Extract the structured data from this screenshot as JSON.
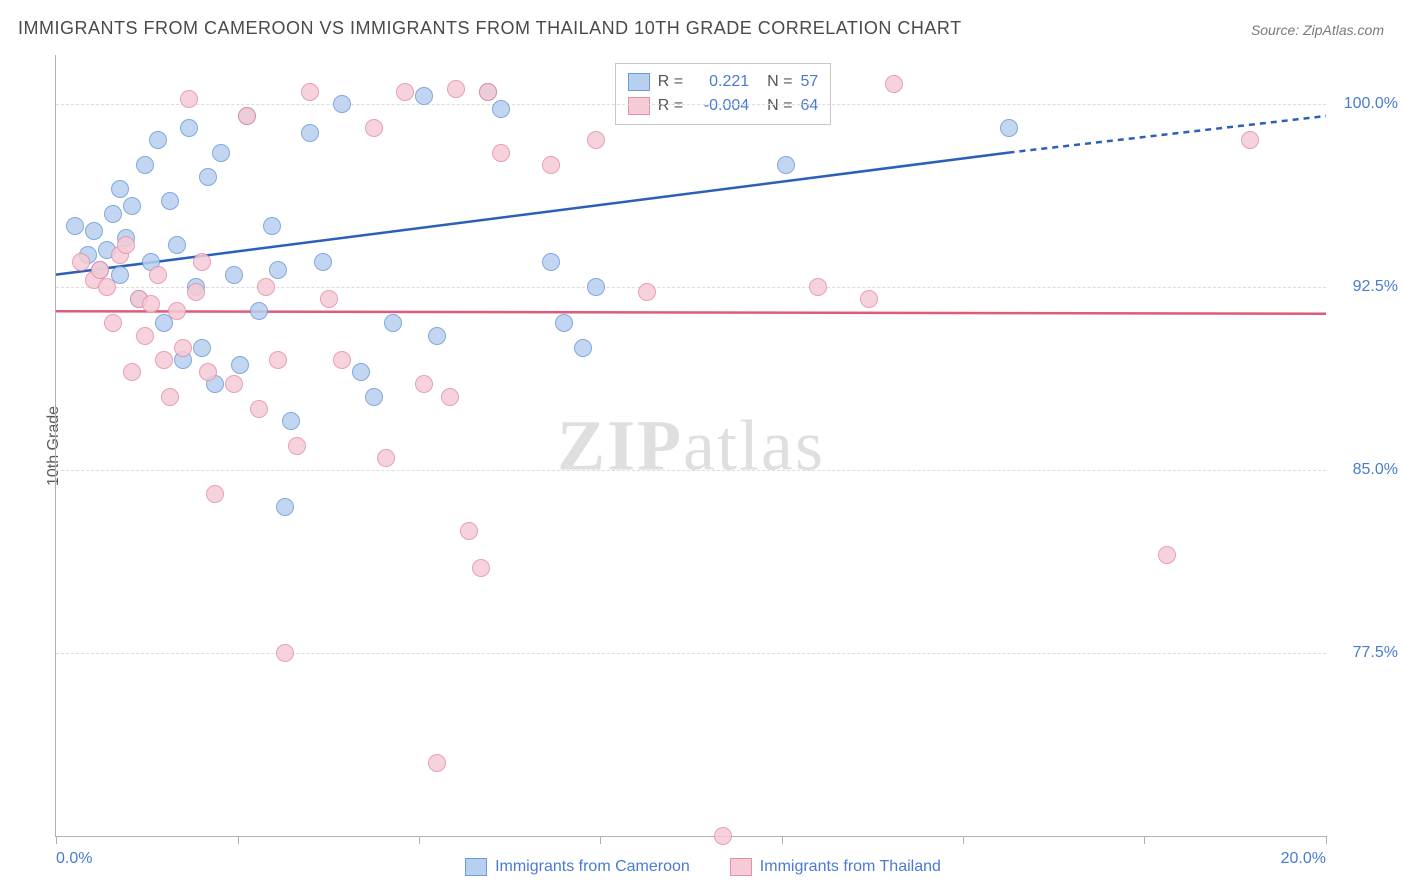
{
  "title": "IMMIGRANTS FROM CAMEROON VS IMMIGRANTS FROM THAILAND 10TH GRADE CORRELATION CHART",
  "source_label": "Source: ",
  "source_value": "ZipAtlas.com",
  "y_axis_title": "10th Grade",
  "watermark_a": "ZIP",
  "watermark_b": "atlas",
  "chart": {
    "type": "scatter",
    "xlim": [
      0,
      20
    ],
    "ylim": [
      70,
      102
    ],
    "x_ticks": [
      0,
      2.86,
      5.71,
      8.57,
      11.43,
      14.29,
      17.14,
      20
    ],
    "x_label_min": "0.0%",
    "x_label_max": "20.0%",
    "y_gridlines": [
      77.5,
      85.0,
      92.5,
      100.0
    ],
    "y_labels": [
      "77.5%",
      "85.0%",
      "92.5%",
      "100.0%"
    ],
    "background_color": "#ffffff",
    "grid_color": "#dcdcdc",
    "axis_color": "#b0b0b0",
    "label_color": "#4a7bd0",
    "title_color": "#4a4a4a",
    "marker_radius": 9,
    "series": [
      {
        "name": "Immigrants from Cameroon",
        "fill": "#b8d0ef",
        "stroke": "#6a9bd8",
        "line_color": "#2c5fb8",
        "regression": {
          "x1": 0,
          "y1": 93.0,
          "x2": 15,
          "y2": 98.0,
          "x2_dash": 20,
          "y2_dash": 99.5
        },
        "r_value": "0.221",
        "n_value": "57",
        "points": [
          [
            0.3,
            95.0
          ],
          [
            0.5,
            93.8
          ],
          [
            0.6,
            94.8
          ],
          [
            0.7,
            93.2
          ],
          [
            0.8,
            94.0
          ],
          [
            0.9,
            95.5
          ],
          [
            1.0,
            93.0
          ],
          [
            1.0,
            96.5
          ],
          [
            1.1,
            94.5
          ],
          [
            1.2,
            95.8
          ],
          [
            1.3,
            92.0
          ],
          [
            1.4,
            97.5
          ],
          [
            1.5,
            93.5
          ],
          [
            1.6,
            98.5
          ],
          [
            1.7,
            91.0
          ],
          [
            1.8,
            96.0
          ],
          [
            1.9,
            94.2
          ],
          [
            2.0,
            89.5
          ],
          [
            2.1,
            99.0
          ],
          [
            2.2,
            92.5
          ],
          [
            2.3,
            90.0
          ],
          [
            2.4,
            97.0
          ],
          [
            2.5,
            88.5
          ],
          [
            2.6,
            98.0
          ],
          [
            2.8,
            93.0
          ],
          [
            2.9,
            89.3
          ],
          [
            3.0,
            99.5
          ],
          [
            3.2,
            91.5
          ],
          [
            3.4,
            95.0
          ],
          [
            3.5,
            93.2
          ],
          [
            3.6,
            83.5
          ],
          [
            3.7,
            87.0
          ],
          [
            4.0,
            98.8
          ],
          [
            4.2,
            93.5
          ],
          [
            4.5,
            100.0
          ],
          [
            4.8,
            89.0
          ],
          [
            5.0,
            88.0
          ],
          [
            5.3,
            91.0
          ],
          [
            5.8,
            100.3
          ],
          [
            6.0,
            90.5
          ],
          [
            6.8,
            100.5
          ],
          [
            7.0,
            99.8
          ],
          [
            7.8,
            93.5
          ],
          [
            8.0,
            91.0
          ],
          [
            8.3,
            90.0
          ],
          [
            8.5,
            92.5
          ],
          [
            11.5,
            97.5
          ],
          [
            15.0,
            99.0
          ]
        ]
      },
      {
        "name": "Immigrants from Thailand",
        "fill": "#f5cbd6",
        "stroke": "#e68fa8",
        "line_color": "#e05a7a",
        "regression": {
          "x1": 0,
          "y1": 91.5,
          "x2": 20,
          "y2": 91.4
        },
        "r_value": "-0.004",
        "n_value": "64",
        "points": [
          [
            0.4,
            93.5
          ],
          [
            0.6,
            92.8
          ],
          [
            0.7,
            93.2
          ],
          [
            0.8,
            92.5
          ],
          [
            0.9,
            91.0
          ],
          [
            1.0,
            93.8
          ],
          [
            1.1,
            94.2
          ],
          [
            1.2,
            89.0
          ],
          [
            1.3,
            92.0
          ],
          [
            1.4,
            90.5
          ],
          [
            1.5,
            91.8
          ],
          [
            1.6,
            93.0
          ],
          [
            1.7,
            89.5
          ],
          [
            1.8,
            88.0
          ],
          [
            1.9,
            91.5
          ],
          [
            2.0,
            90.0
          ],
          [
            2.1,
            100.2
          ],
          [
            2.2,
            92.3
          ],
          [
            2.3,
            93.5
          ],
          [
            2.4,
            89.0
          ],
          [
            2.5,
            84.0
          ],
          [
            2.8,
            88.5
          ],
          [
            3.0,
            99.5
          ],
          [
            3.2,
            87.5
          ],
          [
            3.3,
            92.5
          ],
          [
            3.5,
            89.5
          ],
          [
            3.6,
            77.5
          ],
          [
            3.8,
            86.0
          ],
          [
            4.0,
            100.5
          ],
          [
            4.3,
            92.0
          ],
          [
            4.5,
            89.5
          ],
          [
            5.0,
            99.0
          ],
          [
            5.2,
            85.5
          ],
          [
            5.5,
            100.5
          ],
          [
            5.8,
            88.5
          ],
          [
            6.0,
            73.0
          ],
          [
            6.2,
            88.0
          ],
          [
            6.3,
            100.6
          ],
          [
            6.5,
            82.5
          ],
          [
            6.7,
            81.0
          ],
          [
            6.8,
            100.5
          ],
          [
            7.0,
            98.0
          ],
          [
            7.8,
            97.5
          ],
          [
            8.5,
            98.5
          ],
          [
            9.3,
            92.3
          ],
          [
            10.5,
            70.0
          ],
          [
            12.0,
            92.5
          ],
          [
            12.8,
            92.0
          ],
          [
            13.2,
            100.8
          ],
          [
            17.5,
            81.5
          ],
          [
            18.8,
            98.5
          ]
        ]
      }
    ]
  },
  "legend": {
    "r_label": "R =",
    "n_label": "N ="
  }
}
